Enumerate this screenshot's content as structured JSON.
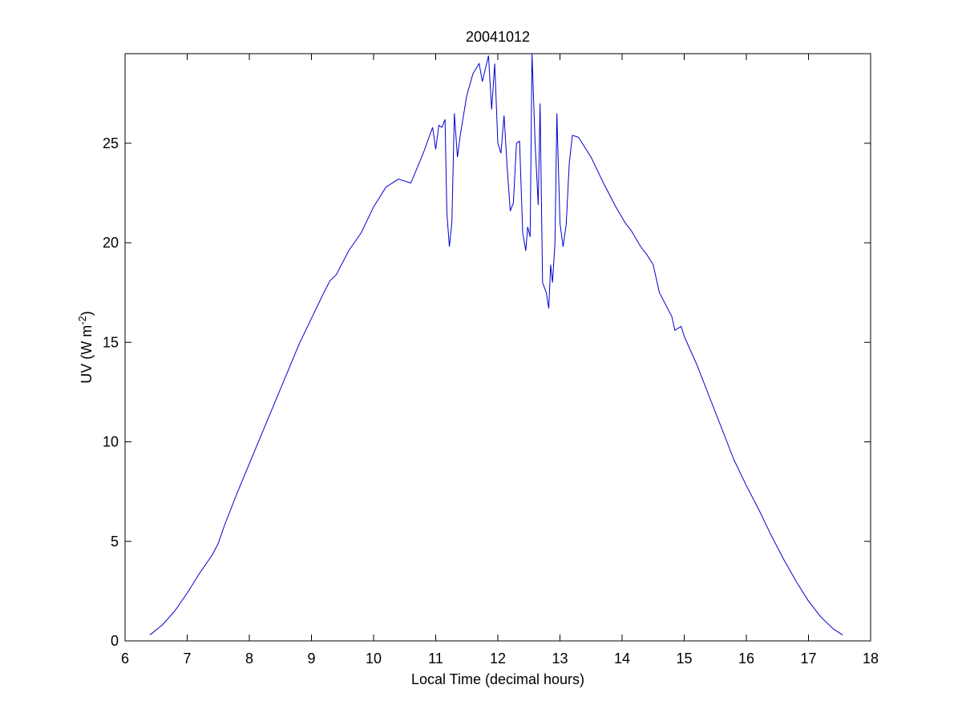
{
  "chart_data": {
    "type": "line",
    "title": "20041012",
    "xlabel": "Local Time (decimal hours)",
    "ylabel": {
      "prefix": "UV (W m",
      "superscript": "-2",
      "suffix": ")"
    },
    "xlim": [
      6,
      18
    ],
    "ylim": [
      0,
      29.5
    ],
    "xticks": [
      6,
      7,
      8,
      9,
      10,
      11,
      12,
      13,
      14,
      15,
      16,
      17,
      18
    ],
    "yticks": [
      0,
      5,
      10,
      15,
      20,
      25
    ],
    "grid": false,
    "legend": "none",
    "line_color": "#0000cc",
    "series": [
      {
        "points": [
          [
            6.4,
            0.3
          ],
          [
            6.6,
            0.8
          ],
          [
            6.8,
            1.5
          ],
          [
            7.0,
            2.4
          ],
          [
            7.2,
            3.4
          ],
          [
            7.4,
            4.3
          ],
          [
            7.5,
            4.9
          ],
          [
            7.6,
            5.8
          ],
          [
            7.8,
            7.4
          ],
          [
            8.0,
            8.9
          ],
          [
            8.2,
            10.4
          ],
          [
            8.4,
            11.9
          ],
          [
            8.6,
            13.4
          ],
          [
            8.8,
            14.9
          ],
          [
            9.0,
            16.2
          ],
          [
            9.2,
            17.5
          ],
          [
            9.3,
            18.1
          ],
          [
            9.4,
            18.4
          ],
          [
            9.6,
            19.6
          ],
          [
            9.8,
            20.5
          ],
          [
            10.0,
            21.8
          ],
          [
            10.2,
            22.8
          ],
          [
            10.4,
            23.2
          ],
          [
            10.6,
            23.0
          ],
          [
            10.8,
            24.5
          ],
          [
            10.95,
            25.8
          ],
          [
            11.0,
            24.7
          ],
          [
            11.05,
            25.9
          ],
          [
            11.1,
            25.8
          ],
          [
            11.15,
            26.2
          ],
          [
            11.18,
            21.5
          ],
          [
            11.22,
            19.8
          ],
          [
            11.26,
            21.0
          ],
          [
            11.3,
            26.5
          ],
          [
            11.35,
            24.3
          ],
          [
            11.4,
            25.5
          ],
          [
            11.5,
            27.4
          ],
          [
            11.6,
            28.5
          ],
          [
            11.7,
            29.0
          ],
          [
            11.75,
            28.1
          ],
          [
            11.85,
            29.4
          ],
          [
            11.9,
            26.7
          ],
          [
            11.95,
            29.0
          ],
          [
            12.0,
            25.0
          ],
          [
            12.05,
            24.5
          ],
          [
            12.1,
            26.4
          ],
          [
            12.15,
            23.8
          ],
          [
            12.2,
            21.6
          ],
          [
            12.25,
            22.0
          ],
          [
            12.3,
            25.0
          ],
          [
            12.35,
            25.1
          ],
          [
            12.4,
            20.5
          ],
          [
            12.45,
            19.6
          ],
          [
            12.48,
            20.8
          ],
          [
            12.52,
            20.3
          ],
          [
            12.55,
            29.5
          ],
          [
            12.6,
            25.0
          ],
          [
            12.65,
            21.9
          ],
          [
            12.68,
            27.0
          ],
          [
            12.72,
            18.0
          ],
          [
            12.78,
            17.5
          ],
          [
            12.82,
            16.7
          ],
          [
            12.85,
            18.9
          ],
          [
            12.88,
            18.0
          ],
          [
            12.92,
            20.0
          ],
          [
            12.95,
            26.5
          ],
          [
            13.0,
            21.0
          ],
          [
            13.05,
            19.8
          ],
          [
            13.1,
            20.9
          ],
          [
            13.15,
            24.0
          ],
          [
            13.2,
            25.4
          ],
          [
            13.3,
            25.3
          ],
          [
            13.5,
            24.3
          ],
          [
            13.7,
            23.0
          ],
          [
            13.9,
            21.8
          ],
          [
            14.05,
            21.0
          ],
          [
            14.15,
            20.6
          ],
          [
            14.3,
            19.8
          ],
          [
            14.4,
            19.4
          ],
          [
            14.5,
            18.9
          ],
          [
            14.6,
            17.5
          ],
          [
            14.7,
            16.9
          ],
          [
            14.8,
            16.3
          ],
          [
            14.85,
            15.6
          ],
          [
            14.95,
            15.8
          ],
          [
            15.0,
            15.3
          ],
          [
            15.2,
            13.9
          ],
          [
            15.4,
            12.3
          ],
          [
            15.6,
            10.7
          ],
          [
            15.8,
            9.1
          ],
          [
            16.0,
            7.8
          ],
          [
            16.2,
            6.6
          ],
          [
            16.4,
            5.3
          ],
          [
            16.6,
            4.1
          ],
          [
            16.8,
            3.0
          ],
          [
            17.0,
            2.0
          ],
          [
            17.2,
            1.2
          ],
          [
            17.4,
            0.6
          ],
          [
            17.55,
            0.3
          ]
        ]
      }
    ]
  }
}
